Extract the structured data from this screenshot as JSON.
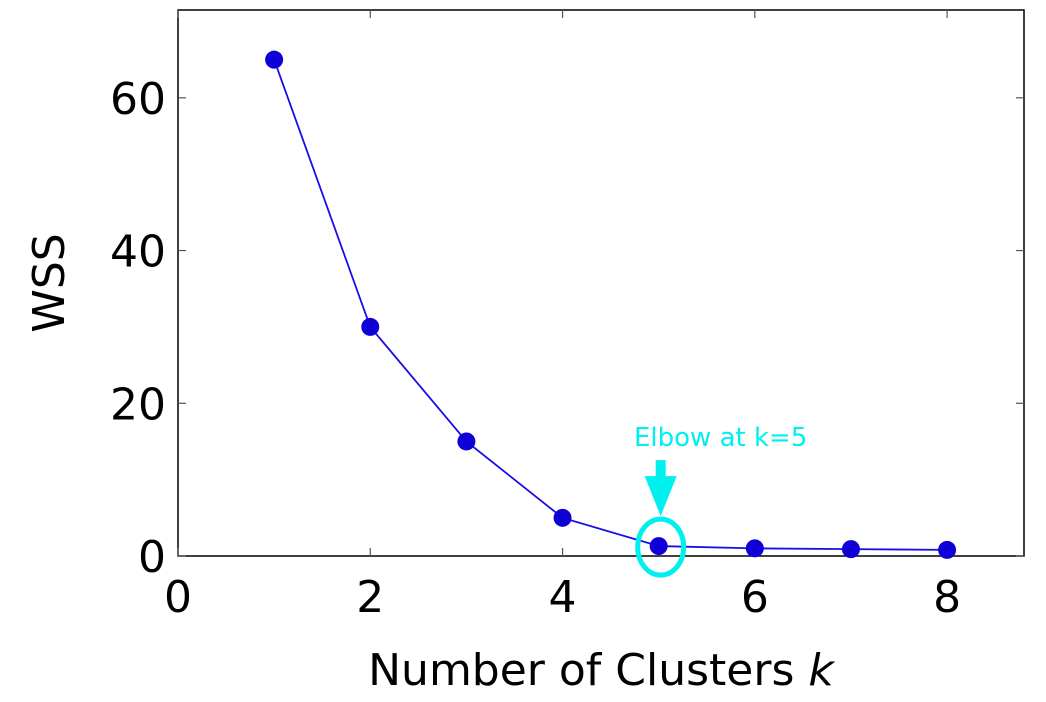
{
  "chart_data": {
    "type": "line",
    "x": [
      1,
      2,
      3,
      4,
      5,
      6,
      7,
      8
    ],
    "series": [
      {
        "values": [
          65,
          30,
          15,
          5,
          1.3,
          1.0,
          0.9,
          0.8
        ]
      }
    ],
    "xlabel_text": "Number of Clusters ",
    "xlabel_var": "k",
    "ylabel": "WSS",
    "xlim": [
      0,
      8.8
    ],
    "ylim": [
      0,
      71.5
    ],
    "xticks": [
      "0",
      "2",
      "4",
      "6",
      "8"
    ],
    "yticks": [
      "0",
      "20",
      "40",
      "60"
    ],
    "grid": false,
    "annotation": {
      "text": "Elbow at k=5",
      "x": 5,
      "y": 1.3
    },
    "colors": {
      "series": "#1a0ee6",
      "marker": "#1000d8",
      "annotation": "#00f0f0",
      "axis": "#000000"
    }
  }
}
